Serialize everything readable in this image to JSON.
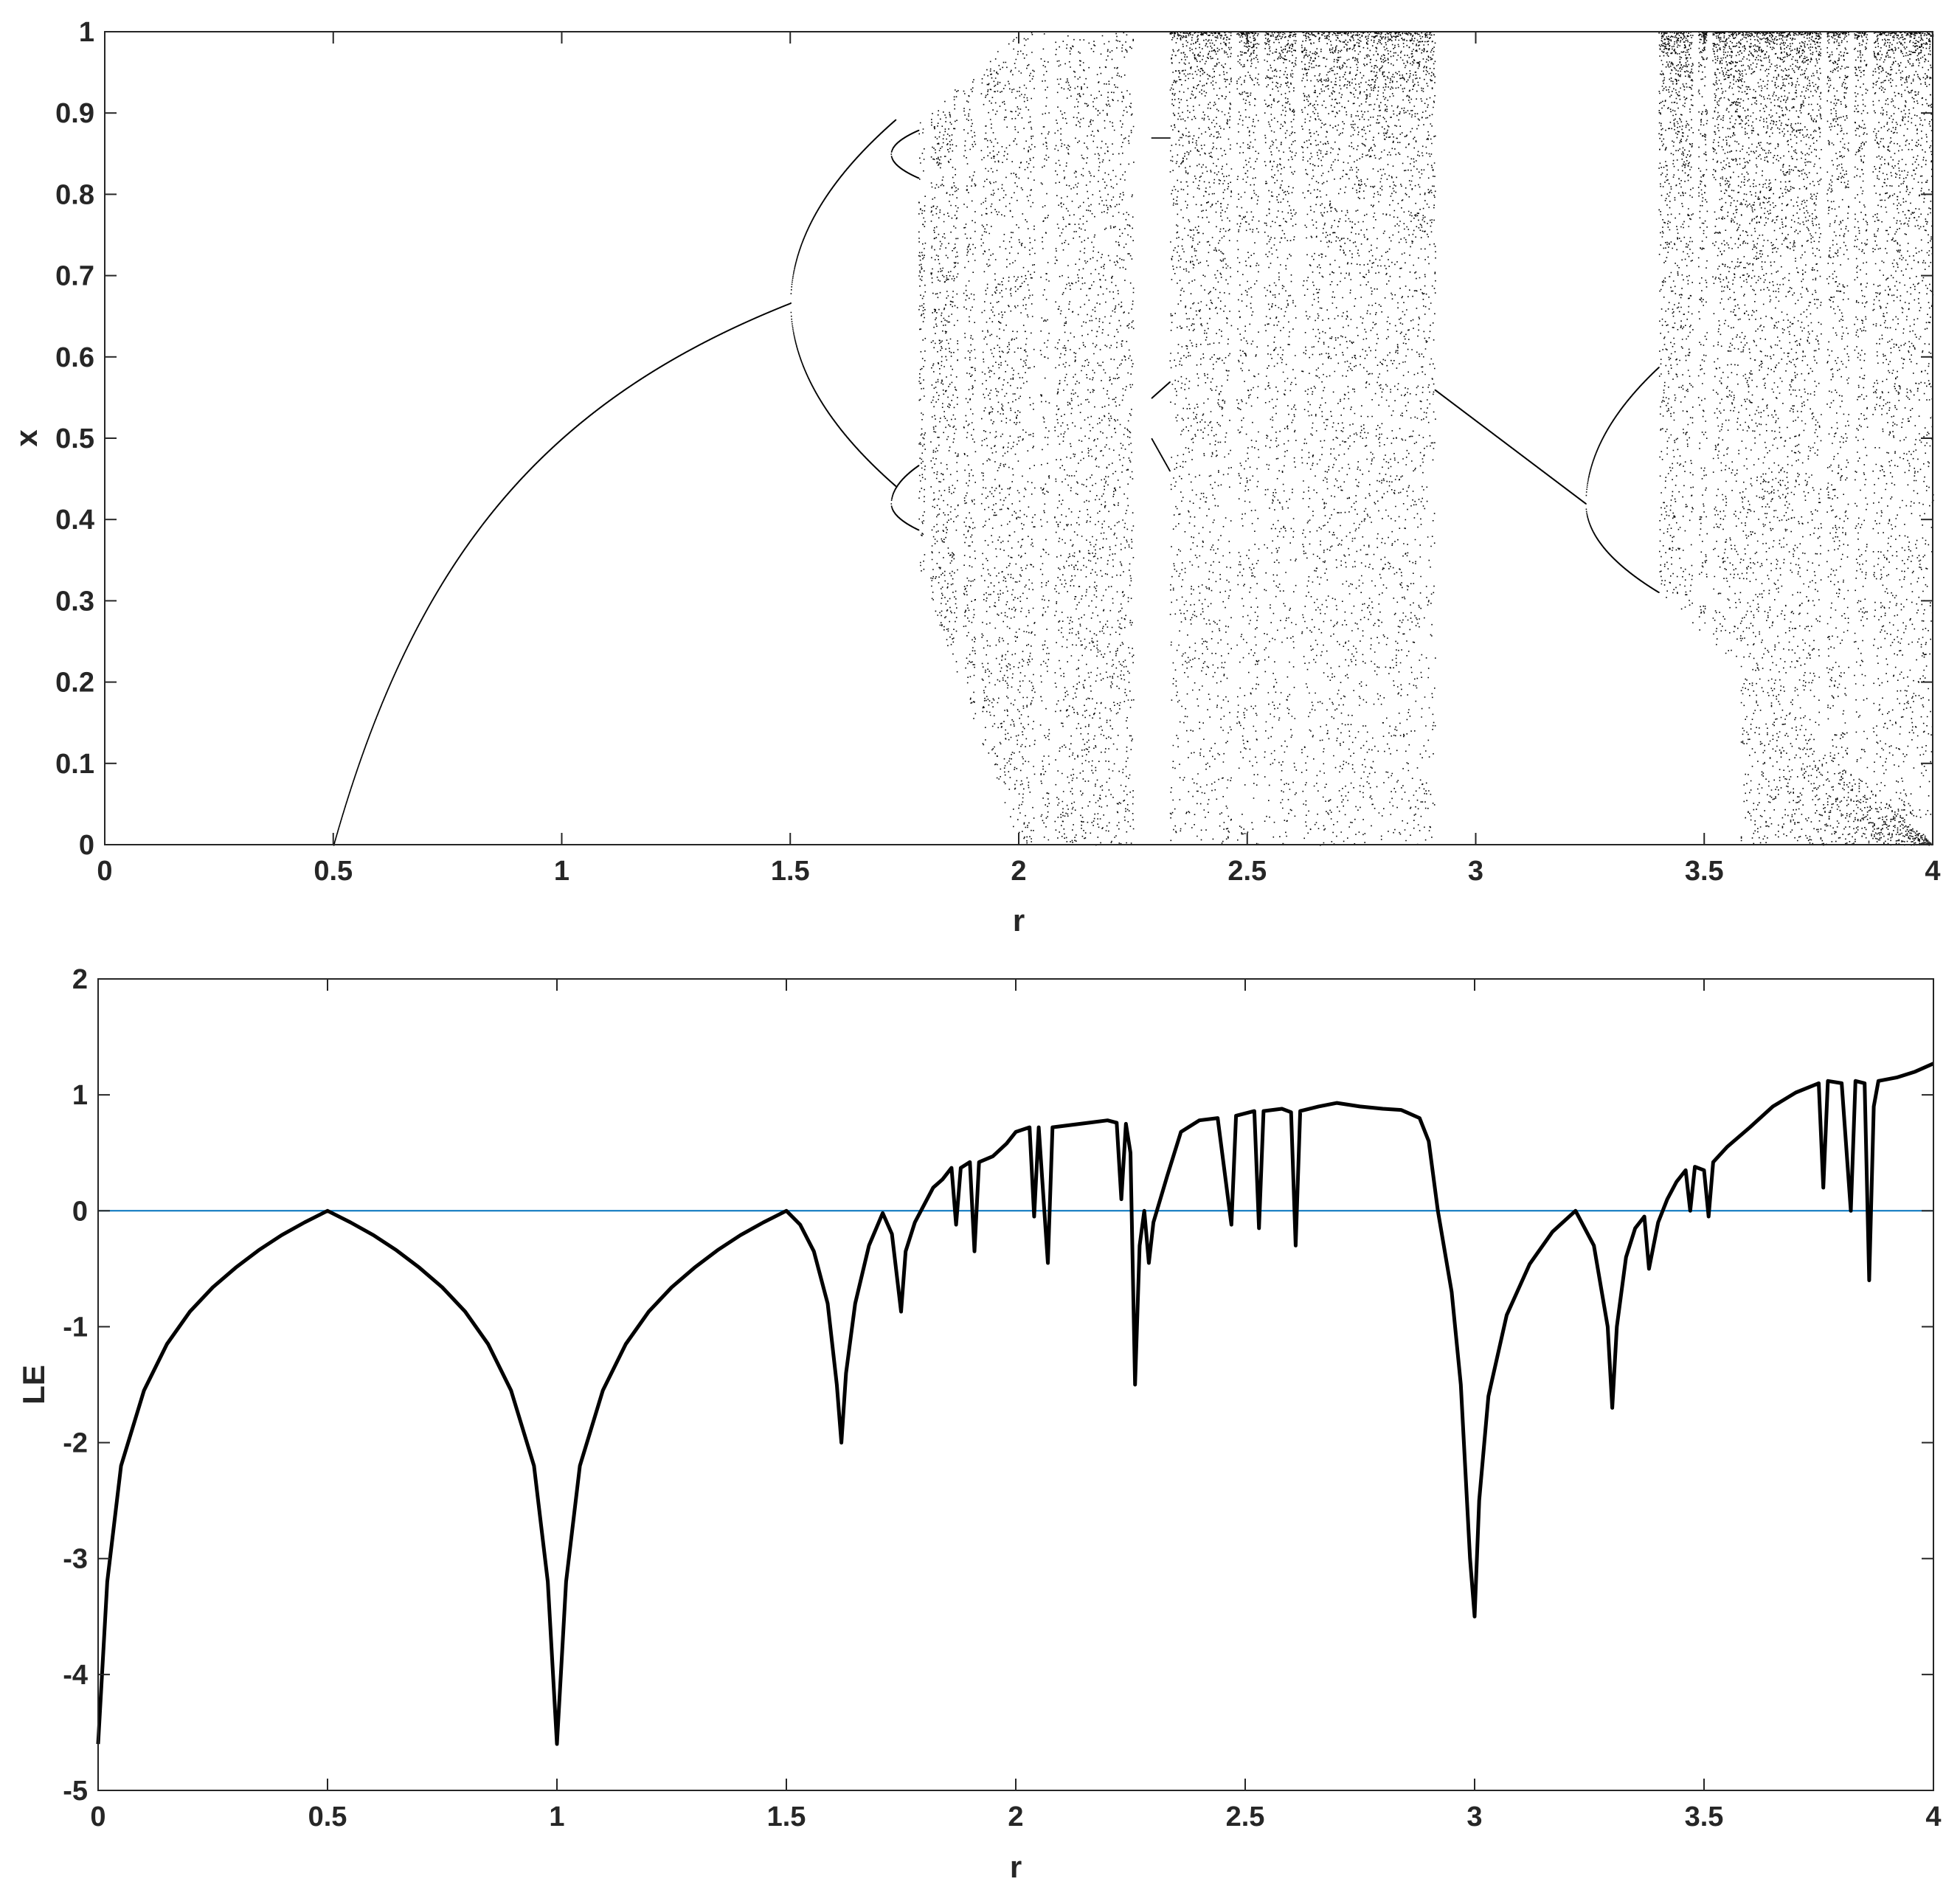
{
  "chart_data": [
    {
      "type": "scatter",
      "xlabel": "r",
      "ylabel": "x",
      "xlim": [
        0,
        4
      ],
      "ylim": [
        0,
        1
      ],
      "xticks": [
        "0",
        "0.5",
        "1",
        "1.5",
        "2",
        "2.5",
        "3",
        "3.5",
        "4"
      ],
      "yticks": [
        "0",
        "0.1",
        "0.2",
        "0.3",
        "0.4",
        "0.5",
        "0.6",
        "0.7",
        "0.8",
        "0.9",
        "1"
      ],
      "grid": false,
      "point_color": "#000000",
      "description_map": "bifurcation diagram of x versus r",
      "features": {
        "fixed_point_zero_until": 0.5,
        "fixed_point_branch": [
          [
            0.5,
            0.0
          ],
          [
            0.75,
            0.333
          ],
          [
            1.0,
            0.5
          ],
          [
            1.25,
            0.6
          ],
          [
            1.5,
            0.667
          ]
        ],
        "period_doubling_at": [
          1.5,
          3.24
        ],
        "chaotic_bands_r": [
          [
            1.78,
            2.25
          ],
          [
            2.29,
            2.91
          ],
          [
            3.4,
            4.0
          ]
        ],
        "windows_r": [
          [
            2.25,
            2.33
          ],
          [
            2.91,
            3.4
          ]
        ],
        "upper_envelope_points": [
          [
            1.78,
            0.89
          ],
          [
            2.0,
            1.0
          ],
          [
            2.91,
            0.55
          ]
        ],
        "lower_envelope_points": [
          [
            1.78,
            0.34
          ],
          [
            2.0,
            0.0
          ],
          [
            3.4,
            0.31
          ],
          [
            4.0,
            0.0
          ]
        ]
      }
    },
    {
      "type": "line",
      "xlabel": "r",
      "ylabel": "LE",
      "xlim": [
        0,
        4
      ],
      "ylim": [
        -5,
        2
      ],
      "xticks": [
        "0",
        "0.5",
        "1",
        "1.5",
        "2",
        "2.5",
        "3",
        "3.5",
        "4"
      ],
      "yticks": [
        "-5",
        "-4",
        "-3",
        "-2",
        "-1",
        "0",
        "1",
        "2"
      ],
      "grid": false,
      "series": [
        {
          "color": "#000000",
          "points": [
            [
              0.0,
              -4.6
            ],
            [
              0.02,
              -3.2
            ],
            [
              0.05,
              -2.2
            ],
            [
              0.1,
              -1.55
            ],
            [
              0.15,
              -1.15
            ],
            [
              0.2,
              -0.87
            ],
            [
              0.25,
              -0.66
            ],
            [
              0.3,
              -0.49
            ],
            [
              0.35,
              -0.34
            ],
            [
              0.4,
              -0.21
            ],
            [
              0.45,
              -0.1
            ],
            [
              0.5,
              0.0
            ],
            [
              0.55,
              -0.1
            ],
            [
              0.6,
              -0.21
            ],
            [
              0.65,
              -0.34
            ],
            [
              0.7,
              -0.49
            ],
            [
              0.75,
              -0.66
            ],
            [
              0.8,
              -0.87
            ],
            [
              0.85,
              -1.15
            ],
            [
              0.9,
              -1.55
            ],
            [
              0.95,
              -2.2
            ],
            [
              0.98,
              -3.2
            ],
            [
              1.0,
              -4.6
            ],
            [
              1.02,
              -3.2
            ],
            [
              1.05,
              -2.2
            ],
            [
              1.1,
              -1.55
            ],
            [
              1.15,
              -1.15
            ],
            [
              1.2,
              -0.87
            ],
            [
              1.25,
              -0.66
            ],
            [
              1.3,
              -0.49
            ],
            [
              1.35,
              -0.34
            ],
            [
              1.4,
              -0.21
            ],
            [
              1.45,
              -0.1
            ],
            [
              1.5,
              0.0
            ],
            [
              1.53,
              -0.12
            ],
            [
              1.56,
              -0.35
            ],
            [
              1.59,
              -0.8
            ],
            [
              1.61,
              -1.5
            ],
            [
              1.62,
              -2.0
            ],
            [
              1.63,
              -1.4
            ],
            [
              1.65,
              -0.8
            ],
            [
              1.68,
              -0.3
            ],
            [
              1.71,
              -0.02
            ],
            [
              1.73,
              -0.2
            ],
            [
              1.75,
              -0.87
            ],
            [
              1.76,
              -0.35
            ],
            [
              1.78,
              -0.1
            ],
            [
              1.8,
              0.05
            ],
            [
              1.82,
              0.2
            ],
            [
              1.84,
              0.27
            ],
            [
              1.86,
              0.37
            ],
            [
              1.87,
              -0.12
            ],
            [
              1.88,
              0.37
            ],
            [
              1.9,
              0.42
            ],
            [
              1.91,
              -0.35
            ],
            [
              1.92,
              0.42
            ],
            [
              1.95,
              0.47
            ],
            [
              1.98,
              0.58
            ],
            [
              2.0,
              0.68
            ],
            [
              2.03,
              0.72
            ],
            [
              2.04,
              -0.05
            ],
            [
              2.05,
              0.72
            ],
            [
              2.07,
              -0.45
            ],
            [
              2.08,
              0.72
            ],
            [
              2.12,
              0.74
            ],
            [
              2.16,
              0.76
            ],
            [
              2.2,
              0.78
            ],
            [
              2.22,
              0.76
            ],
            [
              2.23,
              0.1
            ],
            [
              2.24,
              0.75
            ],
            [
              2.25,
              0.5
            ],
            [
              2.26,
              -1.5
            ],
            [
              2.27,
              -0.3
            ],
            [
              2.28,
              0.0
            ],
            [
              2.29,
              -0.45
            ],
            [
              2.3,
              -0.1
            ],
            [
              2.33,
              0.3
            ],
            [
              2.36,
              0.68
            ],
            [
              2.4,
              0.78
            ],
            [
              2.44,
              0.8
            ],
            [
              2.47,
              -0.12
            ],
            [
              2.48,
              0.82
            ],
            [
              2.52,
              0.86
            ],
            [
              2.53,
              -0.15
            ],
            [
              2.54,
              0.86
            ],
            [
              2.58,
              0.88
            ],
            [
              2.6,
              0.85
            ],
            [
              2.61,
              -0.3
            ],
            [
              2.62,
              0.86
            ],
            [
              2.66,
              0.9
            ],
            [
              2.7,
              0.93
            ],
            [
              2.75,
              0.9
            ],
            [
              2.8,
              0.88
            ],
            [
              2.84,
              0.87
            ],
            [
              2.88,
              0.8
            ],
            [
              2.9,
              0.6
            ],
            [
              2.92,
              0.0
            ],
            [
              2.95,
              -0.7
            ],
            [
              2.97,
              -1.5
            ],
            [
              2.99,
              -3.0
            ],
            [
              3.0,
              -3.5
            ],
            [
              3.01,
              -2.5
            ],
            [
              3.03,
              -1.6
            ],
            [
              3.07,
              -0.9
            ],
            [
              3.12,
              -0.46
            ],
            [
              3.17,
              -0.18
            ],
            [
              3.22,
              0.0
            ],
            [
              3.26,
              -0.3
            ],
            [
              3.29,
              -1.0
            ],
            [
              3.3,
              -1.7
            ],
            [
              3.31,
              -1.0
            ],
            [
              3.33,
              -0.4
            ],
            [
              3.35,
              -0.15
            ],
            [
              3.37,
              -0.05
            ],
            [
              3.38,
              -0.5
            ],
            [
              3.4,
              -0.1
            ],
            [
              3.42,
              0.1
            ],
            [
              3.44,
              0.25
            ],
            [
              3.46,
              0.35
            ],
            [
              3.47,
              0.0
            ],
            [
              3.48,
              0.38
            ],
            [
              3.5,
              0.35
            ],
            [
              3.51,
              -0.05
            ],
            [
              3.52,
              0.42
            ],
            [
              3.55,
              0.55
            ],
            [
              3.6,
              0.72
            ],
            [
              3.65,
              0.9
            ],
            [
              3.7,
              1.02
            ],
            [
              3.75,
              1.1
            ],
            [
              3.76,
              0.2
            ],
            [
              3.77,
              1.12
            ],
            [
              3.8,
              1.1
            ],
            [
              3.82,
              0.0
            ],
            [
              3.83,
              1.12
            ],
            [
              3.85,
              1.1
            ],
            [
              3.86,
              -0.6
            ],
            [
              3.87,
              0.9
            ],
            [
              3.88,
              1.12
            ],
            [
              3.92,
              1.15
            ],
            [
              3.96,
              1.2
            ],
            [
              4.0,
              1.27
            ]
          ]
        },
        {
          "color": "#0072BD",
          "points": [
            [
              0,
              0
            ],
            [
              4,
              0
            ]
          ]
        }
      ]
    }
  ]
}
